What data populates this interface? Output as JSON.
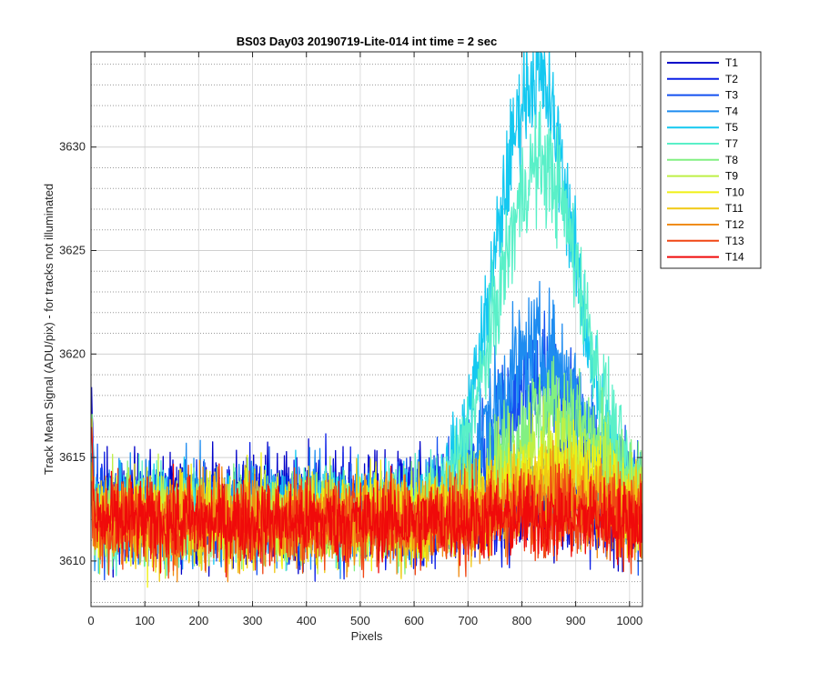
{
  "chart_data": {
    "type": "line",
    "title": "BS03 Day03 20190719-Lite-014 int time = 2 sec",
    "xlabel": "Pixels",
    "ylabel": "Track Mean Signal (ADU/pix) - for tracks not illuminated",
    "xlim": [
      0,
      1024
    ],
    "ylim": [
      3607.8,
      3634.6
    ],
    "xticks": [
      0,
      100,
      200,
      300,
      400,
      500,
      600,
      700,
      800,
      900,
      1000
    ],
    "xtick_labels": [
      "0",
      "100",
      "200",
      "300",
      "400",
      "500",
      "600",
      "700",
      "800",
      "900",
      "1000"
    ],
    "yticks": [
      3610,
      3615,
      3620,
      3625,
      3630
    ],
    "ytick_labels": [
      "3610",
      "3615",
      "3620",
      "3625",
      "3630"
    ],
    "grid": true,
    "minor_grid": true,
    "legend_position": "outside-top-right",
    "series": [
      {
        "name": "T1",
        "color": "#0000c8",
        "baseline": 3612.6,
        "noise": 1.3,
        "peak": 0.3,
        "peak_center": 850,
        "peak_width": 90
      },
      {
        "name": "T2",
        "color": "#0a1ee6",
        "baseline": 3612.4,
        "noise": 1.3,
        "peak": 0.6,
        "peak_center": 850,
        "peak_width": 90
      },
      {
        "name": "T3",
        "color": "#1450f0",
        "baseline": 3612.3,
        "noise": 1.2,
        "peak": 6.5,
        "peak_center": 835,
        "peak_width": 85
      },
      {
        "name": "T4",
        "color": "#1e8cf0",
        "baseline": 3612.3,
        "noise": 1.2,
        "peak": 7.8,
        "peak_center": 830,
        "peak_width": 85
      },
      {
        "name": "T5",
        "color": "#14c8f0",
        "baseline": 3612.4,
        "noise": 1.1,
        "peak": 21.0,
        "peak_center": 825,
        "peak_width": 72
      },
      {
        "name": "T7",
        "color": "#5af0c8",
        "baseline": 3612.2,
        "noise": 1.1,
        "peak": 17.0,
        "peak_center": 835,
        "peak_width": 80
      },
      {
        "name": "T8",
        "color": "#82f082",
        "baseline": 3612.1,
        "noise": 1.1,
        "peak": 5.2,
        "peak_center": 860,
        "peak_width": 90
      },
      {
        "name": "T9",
        "color": "#bef046",
        "baseline": 3612.1,
        "noise": 1.1,
        "peak": 3.2,
        "peak_center": 860,
        "peak_width": 90
      },
      {
        "name": "T10",
        "color": "#f0f014",
        "baseline": 3612.0,
        "noise": 1.1,
        "peak": 2.3,
        "peak_center": 860,
        "peak_width": 95
      },
      {
        "name": "T11",
        "color": "#f0c814",
        "baseline": 3612.0,
        "noise": 1.1,
        "peak": 1.5,
        "peak_center": 860,
        "peak_width": 95
      },
      {
        "name": "T12",
        "color": "#f08c14",
        "baseline": 3611.9,
        "noise": 1.1,
        "peak": 1.0,
        "peak_center": 860,
        "peak_width": 95
      },
      {
        "name": "T13",
        "color": "#f04614",
        "baseline": 3611.9,
        "noise": 1.1,
        "peak": 0.5,
        "peak_center": 860,
        "peak_width": 95
      },
      {
        "name": "T14",
        "color": "#f00a0a",
        "baseline": 3611.9,
        "noise": 1.0,
        "peak": 0.2,
        "peak_center": 860,
        "peak_width": 95
      }
    ]
  }
}
